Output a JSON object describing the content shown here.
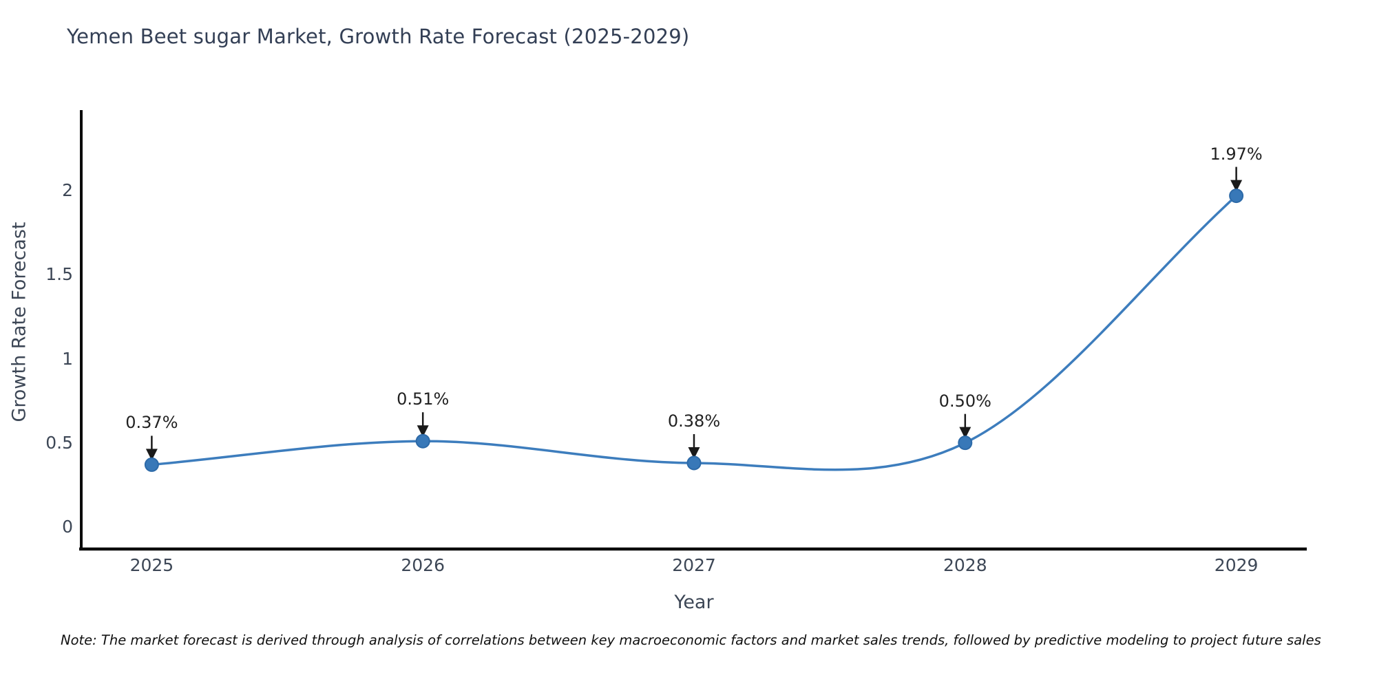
{
  "page": {
    "background": "#ffffff"
  },
  "chart_data": {
    "type": "line",
    "title": "Yemen Beet sugar Market, Growth Rate Forecast (2025-2029)",
    "xlabel": "Year",
    "ylabel": "Growth Rate Forecast",
    "x": [
      2025,
      2026,
      2027,
      2028,
      2029
    ],
    "xtick_labels": [
      "2025",
      "2026",
      "2027",
      "2028",
      "2029"
    ],
    "values": [
      0.37,
      0.51,
      0.38,
      0.5,
      1.97
    ],
    "point_labels": [
      "0.37%",
      "0.51%",
      "0.38%",
      "0.50%",
      "1.97%"
    ],
    "yticks": [
      0,
      0.5,
      1,
      1.5,
      2
    ],
    "ytick_labels": [
      "0",
      "0.5",
      "1",
      "1.5",
      "2"
    ],
    "xlim": [
      2024.74,
      2029.26
    ],
    "ylim": [
      -0.14,
      2.48
    ],
    "grid": false,
    "legend": "none",
    "smooth_curve": true,
    "colors": {
      "line": "#3d7dbd",
      "marker_fill": "#3878b8",
      "marker_edge": "#2d6aa8",
      "axis_spine": "#0b0b0b",
      "arrow": "#1a1a1a",
      "annotation_text": "#222222",
      "tick_text": "#3d4756",
      "title_text": "#333f55",
      "note_text": "#111111"
    }
  },
  "note": {
    "text": "Note: The market forecast is derived through analysis of correlations between key macroeconomic factors and market sales trends, followed by predictive modeling to project future sales"
  }
}
